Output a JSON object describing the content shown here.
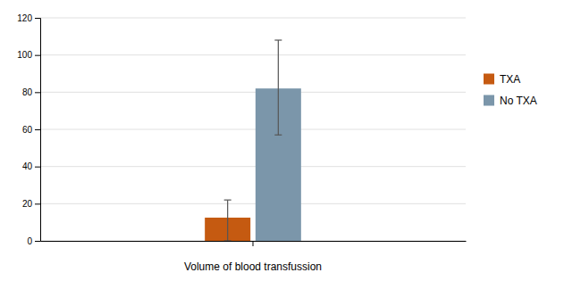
{
  "chart_data": {
    "type": "bar",
    "xlabel": "Volume of blood transfussion",
    "categories": [
      null
    ],
    "series": [
      {
        "name": "TXA",
        "color": "#C55A11",
        "values": [
          12.5
        ],
        "err_low": [
          12.5
        ],
        "err_high": [
          9.5
        ]
      },
      {
        "name": "No TXA",
        "color": "#7B96AA",
        "values": [
          82.0
        ],
        "err_low": [
          25.0
        ],
        "err_high": [
          26.0
        ]
      }
    ],
    "ylim": [
      0,
      120
    ],
    "yticks": [
      0,
      20,
      40,
      60,
      80,
      100,
      120
    ],
    "grid": true,
    "legend": "right",
    "tick_labels": "y"
  }
}
